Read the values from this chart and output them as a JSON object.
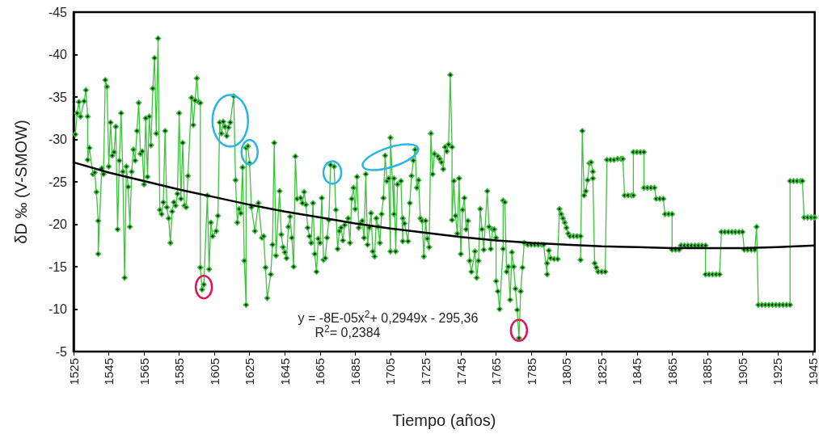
{
  "chart_data": {
    "type": "line",
    "xlabel": "Tiempo (años)",
    "ylabel": "δD ‰ (V-SMOW)",
    "xlim": [
      1525,
      1946
    ],
    "xticks": [
      1525,
      1545,
      1565,
      1585,
      1605,
      1625,
      1645,
      1665,
      1685,
      1705,
      1725,
      1745,
      1765,
      1785,
      1805,
      1825,
      1845,
      1865,
      1885,
      1905,
      1925,
      1945
    ],
    "ylim": [
      -5,
      -45
    ],
    "yticks": [
      -45,
      -40,
      -35,
      -30,
      -25,
      -20,
      -15,
      -10,
      -5
    ],
    "grid": false,
    "marker": "diamond",
    "line_style": "solid",
    "annotations": [
      "y = -8E-05x$^{2}$+ 0,2949x - 295,36",
      "R$^{2}$= 0,2384"
    ],
    "series": [
      {
        "color": "#3dc43d",
        "x": [
          1526,
          1527,
          1528,
          1529,
          1531,
          1532,
          1533,
          1533,
          1534,
          1536,
          1537,
          1538,
          1539,
          1539,
          1541,
          1542,
          1543,
          1544,
          1545,
          1546,
          1547,
          1548,
          1549,
          1550,
          1551,
          1552,
          1553,
          1554,
          1555,
          1556,
          1557,
          1558,
          1559,
          1560,
          1561,
          1562,
          1563,
          1564,
          1565,
          1566,
          1567,
          1568,
          1569,
          1570,
          1571,
          1572,
          1573,
          1574,
          1575,
          1576,
          1577,
          1578,
          1579,
          1580,
          1581,
          1582,
          1583,
          1584,
          1585,
          1586,
          1587,
          1588,
          1589,
          1590,
          1592,
          1593,
          1594,
          1595,
          1596,
          1597,
          1597,
          1598,
          1599,
          1601,
          1602,
          1603,
          1604,
          1606,
          1607,
          1608,
          1609,
          1610,
          1611,
          1612,
          1613,
          1614,
          1616,
          1617,
          1618,
          1619,
          1620,
          1621,
          1622,
          1623,
          1623,
          1624,
          1625,
          1626,
          1628,
          1630,
          1632,
          1633,
          1634,
          1635,
          1637,
          1638,
          1639,
          1640,
          1642,
          1643,
          1644,
          1645,
          1646,
          1647,
          1648,
          1649,
          1650,
          1651,
          1652,
          1654,
          1655,
          1656,
          1657,
          1658,
          1659,
          1660,
          1661,
          1662,
          1663,
          1664,
          1665,
          1666,
          1667,
          1668,
          1669,
          1670,
          1671,
          1673,
          1674,
          1675,
          1676,
          1677,
          1678,
          1679,
          1681,
          1682,
          1683,
          1684,
          1685,
          1686,
          1687,
          1688,
          1689,
          1690,
          1691,
          1692,
          1693,
          1694,
          1695,
          1696,
          1697,
          1698,
          1699,
          1700,
          1701,
          1702,
          1703,
          1704,
          1705,
          1705,
          1707,
          1707,
          1708,
          1709,
          1711,
          1712,
          1712,
          1713,
          1715,
          1716,
          1717,
          1718,
          1719,
          1720,
          1721,
          1722,
          1723,
          1724,
          1725,
          1726,
          1727,
          1728,
          1729,
          1730,
          1732,
          1733,
          1734,
          1735,
          1736,
          1737,
          1738,
          1739,
          1740,
          1740,
          1741,
          1742,
          1743,
          1744,
          1745,
          1746,
          1747,
          1748,
          1749,
          1750,
          1751,
          1753,
          1754,
          1755,
          1756,
          1757,
          1758,
          1760,
          1761,
          1762,
          1763,
          1764,
          1765,
          1765,
          1766,
          1767,
          1769,
          1769,
          1770,
          1771,
          1772,
          1773,
          1774,
          1775,
          1776,
          1777,
          1778,
          1779,
          1780,
          1781,
          1783,
          1785,
          1787,
          1789,
          1791,
          1792,
          1794,
          1794,
          1795,
          1796,
          1798,
          1800,
          1801,
          1802,
          1803,
          1804,
          1805,
          1806,
          1807,
          1809,
          1811,
          1813,
          1813,
          1814,
          1815,
          1816,
          1817,
          1818,
          1819,
          1820,
          1820,
          1821,
          1822,
          1823,
          1825,
          1827,
          1828,
          1830,
          1832,
          1834,
          1836,
          1837,
          1838,
          1840,
          1842,
          1843,
          1843,
          1845,
          1847,
          1849,
          1849,
          1851,
          1853,
          1855,
          1856,
          1858,
          1860,
          1861,
          1863,
          1865,
          1865,
          1867,
          1869,
          1870,
          1872,
          1874,
          1876,
          1878,
          1880,
          1882,
          1884,
          1884,
          1886,
          1888,
          1890,
          1892,
          1893,
          1895,
          1897,
          1899,
          1901,
          1903,
          1905,
          1906,
          1908,
          1910,
          1912,
          1913,
          1914,
          1916,
          1918,
          1920,
          1922,
          1924,
          1926,
          1928,
          1930,
          1932,
          1932,
          1934,
          1936,
          1938,
          1939,
          1940,
          1942,
          1944,
          1946
        ],
        "values": [
          -30.6,
          -33.1,
          -34.4,
          -32.7,
          -34.5,
          -35.8,
          -32.7,
          -27.6,
          -29.0,
          -25.9,
          -26.1,
          -23.8,
          -20.4,
          -16.5,
          -26.6,
          -25.9,
          -37.0,
          -36.2,
          -26.8,
          -32.0,
          -28.1,
          -28.5,
          -31.5,
          -19.4,
          -27.5,
          -33.1,
          -26.2,
          -13.7,
          -26.8,
          -24.4,
          -19.7,
          -26.2,
          -28.8,
          -27.5,
          -31.0,
          -34.3,
          -28.3,
          -28.6,
          -24.7,
          -32.5,
          -25.6,
          -32.7,
          -29.3,
          -36.0,
          -39.6,
          -30.7,
          -41.9,
          -21.7,
          -21.2,
          -22.6,
          -31.0,
          -22.0,
          -20.7,
          -17.8,
          -21.5,
          -22.6,
          -22.2,
          -23.6,
          -33.1,
          -23.0,
          -29.6,
          -22.2,
          -22.0,
          -25.7,
          -34.9,
          -31.7,
          -34.6,
          -37.2,
          -34.4,
          -34.3,
          -14.9,
          -12.3,
          -12.9,
          -23.4,
          -14.7,
          -20.2,
          -18.6,
          -19.2,
          -21.0,
          -32.0,
          -30.7,
          -32.1,
          -31.5,
          -30.4,
          -31.4,
          -32.0,
          -35.1,
          -25.2,
          -20.2,
          -21.8,
          -21.3,
          -26.7,
          -15.7,
          -10.5,
          -29.0,
          -29.2,
          -27.2,
          -22.0,
          -19.2,
          -22.5,
          -18.4,
          -18.6,
          -14.9,
          -11.3,
          -14.1,
          -17.6,
          -29.6,
          -16.3,
          -23.9,
          -18.8,
          -17.3,
          -16.7,
          -16.0,
          -19.7,
          -20.9,
          -18.4,
          -15.0,
          -28.0,
          -23.0,
          -23.1,
          -22.5,
          -23.8,
          -22.3,
          -19.6,
          -18.6,
          -17.8,
          -22.5,
          -16.5,
          -14.4,
          -18.3,
          -17.8,
          -23.1,
          -15.8,
          -16.0,
          -18.4,
          -20.5,
          -27.0,
          -26.8,
          -21.7,
          -17.1,
          -19.2,
          -19.6,
          -18.1,
          -19.9,
          -20.7,
          -17.8,
          -23.0,
          -24.3,
          -21.8,
          -25.6,
          -19.6,
          -20.1,
          -20.4,
          -18.4,
          -25.9,
          -17.6,
          -19.6,
          -21.3,
          -16.8,
          -16.2,
          -20.7,
          -19.7,
          -17.8,
          -21.2,
          -23.1,
          -28.1,
          -25.1,
          -25.4,
          -16.8,
          -30.2,
          -21.2,
          -25.4,
          -16.8,
          -24.7,
          -25.1,
          -18.0,
          -20.7,
          -20.1,
          -18.0,
          -22.5,
          -25.7,
          -27.5,
          -28.8,
          -24.3,
          -25.2,
          -20.7,
          -20.4,
          -16.2,
          -20.4,
          -18.3,
          -17.3,
          -30.7,
          -25.9,
          -28.3,
          -28.0,
          -27.7,
          -27.3,
          -26.5,
          -29.1,
          -28.6,
          -29.4,
          -37.6,
          -29.1,
          -20.5,
          -25.1,
          -21.0,
          -18.9,
          -25.4,
          -16.5,
          -21.7,
          -23.1,
          -19.4,
          -20.4,
          -15.7,
          -14.4,
          -16.8,
          -13.7,
          -15.7,
          -21.8,
          -19.4,
          -17.0,
          -23.9,
          -19.7,
          -17.1,
          -19.4,
          -19.4,
          -18.4,
          -13.3,
          -12.1,
          -10.0,
          -17.1,
          -22.8,
          -22.6,
          -14.4,
          -15.0,
          -11.1,
          -16.7,
          -15.0,
          -12.4,
          -9.9,
          -6.6,
          -12.1,
          -14.9,
          -17.8,
          -17.6,
          -17.6,
          -17.6,
          -17.6,
          -17.6,
          -17.6,
          -14.1,
          -15.4,
          -16.9,
          -16.0,
          -15.9,
          -15.9,
          -21.8,
          -21.2,
          -20.7,
          -20.2,
          -19.6,
          -18.9,
          -18.6,
          -18.6,
          -18.6,
          -18.6,
          -15.8,
          -31.0,
          -23.4,
          -23.9,
          -25.2,
          -27.2,
          -27.3,
          -26.2,
          -25.4,
          -15.4,
          -14.9,
          -14.4,
          -14.4,
          -14.4,
          -27.6,
          -27.6,
          -27.6,
          -27.7,
          -27.7,
          -27.7,
          -23.4,
          -23.4,
          -23.4,
          -23.4,
          -28.5,
          -28.5,
          -28.5,
          -28.5,
          -24.3,
          -24.3,
          -24.3,
          -24.3,
          -23.0,
          -23.0,
          -23.0,
          -21.2,
          -21.2,
          -21.2,
          -17.0,
          -17.0,
          -17.0,
          -17.5,
          -17.5,
          -17.5,
          -17.5,
          -17.5,
          -17.5,
          -17.5,
          -17.5,
          -14.1,
          -14.1,
          -14.1,
          -14.1,
          -14.1,
          -19.1,
          -19.1,
          -19.1,
          -19.1,
          -19.1,
          -19.1,
          -19.1,
          -17.0,
          -17.0,
          -17.0,
          -17.0,
          -19.7,
          -10.5,
          -10.5,
          -10.5,
          -10.5,
          -10.5,
          -10.5,
          -10.5,
          -10.5,
          -10.5,
          -10.5,
          -25.1,
          -25.1,
          -25.1,
          -25.1,
          -25.1,
          -20.8,
          -20.8,
          -20.8,
          -20.8
        ]
      },
      {
        "color": "#000000",
        "marker": "none",
        "x": [
          1525,
          1545,
          1565,
          1585,
          1605,
          1625,
          1645,
          1665,
          1685,
          1705,
          1725,
          1745,
          1765,
          1785,
          1805,
          1825,
          1845,
          1865,
          1885,
          1905,
          1925,
          1946
        ],
        "values": [
          -27.3,
          -26.1,
          -25.1,
          -24.1,
          -23.2,
          -22.3,
          -21.5,
          -20.8,
          -20.1,
          -19.5,
          -19.0,
          -18.5,
          -18.1,
          -17.8,
          -17.6,
          -17.4,
          -17.3,
          -17.2,
          -17.2,
          -17.2,
          -17.3,
          -17.5
        ]
      }
    ]
  }
}
